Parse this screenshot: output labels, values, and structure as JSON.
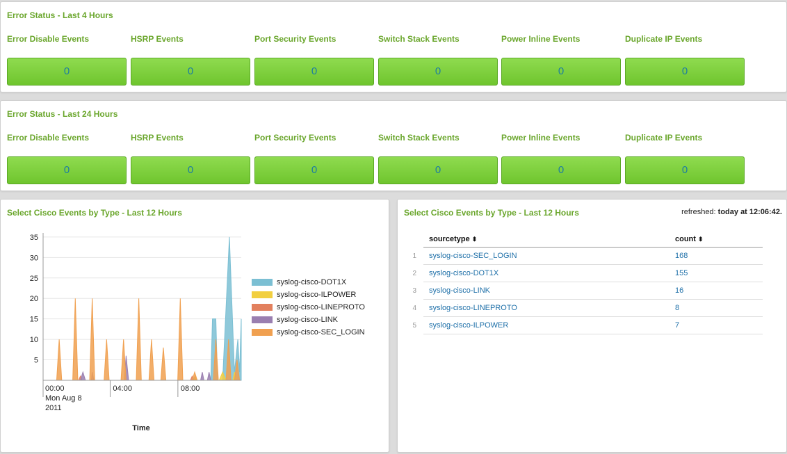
{
  "panel1": {
    "title": "Error Status - Last 4 Hours",
    "cells": [
      {
        "label": "Error Disable Events",
        "value": "0"
      },
      {
        "label": "HSRP Events",
        "value": "0"
      },
      {
        "label": "Port Security Events",
        "value": "0"
      },
      {
        "label": "Switch Stack Events",
        "value": "0"
      },
      {
        "label": "Power Inline Events",
        "value": "0"
      },
      {
        "label": "Duplicate IP Events",
        "value": "0"
      }
    ]
  },
  "panel2": {
    "title": "Error Status - Last 24 Hours",
    "cells": [
      {
        "label": "Error Disable Events",
        "value": "0"
      },
      {
        "label": "HSRP Events",
        "value": "0"
      },
      {
        "label": "Port Security Events",
        "value": "0"
      },
      {
        "label": "Switch Stack Events",
        "value": "0"
      },
      {
        "label": "Power Inline Events",
        "value": "0"
      },
      {
        "label": "Duplicate IP Events",
        "value": "0"
      }
    ]
  },
  "chart_panel": {
    "title": "Select Cisco Events by Type - Last 12 Hours"
  },
  "chart_data": {
    "type": "area",
    "xlabel": "Time",
    "ylabel": "",
    "ylim": [
      0,
      36
    ],
    "y_ticks": [
      "5",
      "10",
      "15",
      "20",
      "25",
      "30",
      "35"
    ],
    "x_tick_labels": [
      {
        "lines": [
          "00:00",
          "Mon Aug 8",
          "2011"
        ]
      },
      {
        "lines": [
          "04:00"
        ]
      },
      {
        "lines": [
          "08:00"
        ]
      }
    ],
    "grid": true,
    "legend_position": "right",
    "x_range_hours": [
      0,
      11.7
    ],
    "series": [
      {
        "name": "syslog-cisco-DOT1X",
        "color": "#7bbfd3",
        "points": [
          [
            8.8,
            0
          ],
          [
            9.0,
            1
          ],
          [
            9.1,
            0
          ],
          [
            9.9,
            0
          ],
          [
            10.0,
            15
          ],
          [
            10.2,
            15
          ],
          [
            10.3,
            0
          ],
          [
            10.6,
            0
          ],
          [
            11.0,
            35
          ],
          [
            11.3,
            2
          ],
          [
            11.5,
            10
          ],
          [
            11.6,
            2
          ],
          [
            11.7,
            15
          ]
        ]
      },
      {
        "name": "syslog-cisco-ILPOWER",
        "color": "#f2cf40",
        "points": [
          [
            8.9,
            0
          ],
          [
            9.0,
            1
          ],
          [
            9.1,
            0
          ],
          [
            10.4,
            0
          ],
          [
            10.6,
            2
          ],
          [
            10.8,
            0
          ],
          [
            11.2,
            0
          ],
          [
            11.3,
            2
          ],
          [
            11.4,
            0
          ]
        ]
      },
      {
        "name": "syslog-cisco-LINEPROTO",
        "color": "#e2805e",
        "points": [
          [
            2.1,
            0
          ],
          [
            2.2,
            1
          ],
          [
            2.3,
            0
          ],
          [
            8.7,
            0
          ],
          [
            8.8,
            1
          ],
          [
            8.9,
            0
          ]
        ]
      },
      {
        "name": "syslog-cisco-LINK",
        "color": "#9a7fb0",
        "points": [
          [
            2.2,
            0
          ],
          [
            2.35,
            2
          ],
          [
            2.5,
            0
          ],
          [
            2.85,
            0
          ],
          [
            2.9,
            2
          ],
          [
            3.0,
            0
          ],
          [
            4.8,
            0
          ],
          [
            4.9,
            6
          ],
          [
            5.05,
            0
          ],
          [
            9.3,
            0
          ],
          [
            9.4,
            2
          ],
          [
            9.5,
            0
          ],
          [
            9.7,
            0
          ],
          [
            9.8,
            2
          ],
          [
            9.9,
            0
          ]
        ]
      },
      {
        "name": "syslog-cisco-SEC_LOGIN",
        "color": "#f0a050",
        "points": [
          [
            0.8,
            0
          ],
          [
            0.95,
            10
          ],
          [
            1.1,
            0
          ],
          [
            1.75,
            0
          ],
          [
            1.9,
            20
          ],
          [
            2.05,
            0
          ],
          [
            2.75,
            0
          ],
          [
            2.9,
            20
          ],
          [
            3.05,
            0
          ],
          [
            3.6,
            0
          ],
          [
            3.75,
            10
          ],
          [
            3.9,
            0
          ],
          [
            4.6,
            0
          ],
          [
            4.75,
            10
          ],
          [
            4.9,
            0
          ],
          [
            5.5,
            0
          ],
          [
            5.65,
            20
          ],
          [
            5.8,
            0
          ],
          [
            6.25,
            0
          ],
          [
            6.4,
            10
          ],
          [
            6.55,
            0
          ],
          [
            6.95,
            0
          ],
          [
            7.1,
            8
          ],
          [
            7.25,
            0
          ],
          [
            7.95,
            0
          ],
          [
            8.1,
            20
          ],
          [
            8.25,
            0
          ],
          [
            8.8,
            0
          ],
          [
            8.95,
            2
          ],
          [
            9.1,
            0
          ],
          [
            10.05,
            0
          ],
          [
            10.2,
            10
          ],
          [
            10.35,
            0
          ],
          [
            10.8,
            0
          ],
          [
            10.95,
            10
          ],
          [
            11.1,
            0
          ],
          [
            11.3,
            0
          ],
          [
            11.45,
            5
          ],
          [
            11.6,
            0
          ]
        ]
      }
    ]
  },
  "table_panel": {
    "title": "Select Cisco Events by Type - Last 12 Hours",
    "refreshed_label": "refreshed:",
    "refreshed_value": "today at 12:06:42.",
    "columns": [
      "sourcetype",
      "count"
    ],
    "rows": [
      {
        "num": "1",
        "sourcetype": "syslog-cisco-SEC_LOGIN",
        "count": "168"
      },
      {
        "num": "2",
        "sourcetype": "syslog-cisco-DOT1X",
        "count": "155"
      },
      {
        "num": "3",
        "sourcetype": "syslog-cisco-LINK",
        "count": "16"
      },
      {
        "num": "4",
        "sourcetype": "syslog-cisco-LINEPROTO",
        "count": "8"
      },
      {
        "num": "5",
        "sourcetype": "syslog-cisco-ILPOWER",
        "count": "7"
      }
    ]
  }
}
